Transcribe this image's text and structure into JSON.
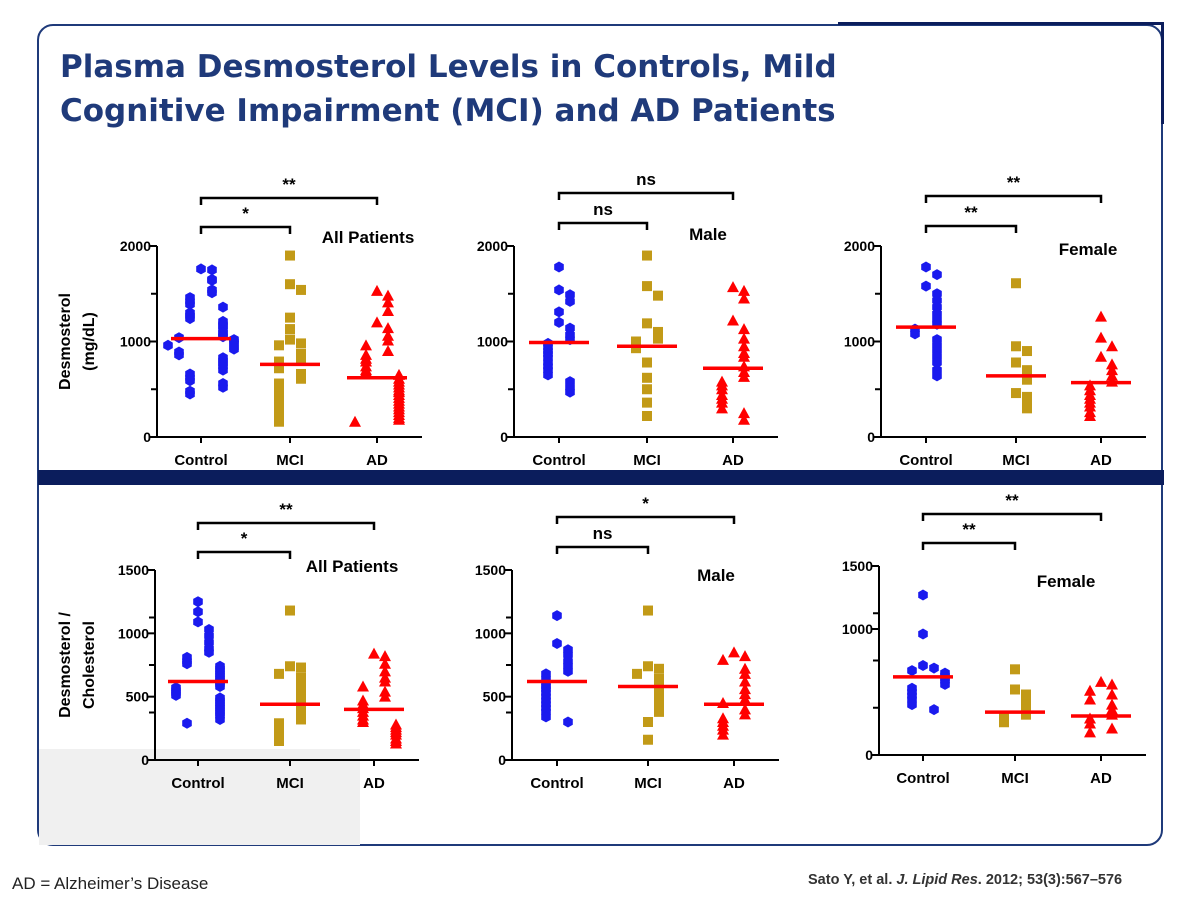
{
  "slide": {
    "title_line1": "Plasma Desmosterol Levels in Controls, Mild",
    "title_line2": "Cognitive Impairment (MCI) and AD Patients",
    "footnote": "AD = Alzheimer’s Disease",
    "citation_authors": "Sato Y, et al.",
    "citation_journal": "J. Lipid Res",
    "citation_details": ". 2012; 53(3):567–576"
  },
  "colors": {
    "title": "#1f3a7a",
    "frame": "#1f3a7a",
    "divider": "#0b1d5c",
    "control": "#1a1aee",
    "mci": "#c29a17",
    "ad": "#ff0000",
    "median": "#ff0000"
  },
  "chart_data": [
    {
      "type": "scatter",
      "title": "All Patients",
      "ylabel_lines": [
        "Desmosterol",
        "(mg/dL)"
      ],
      "categories": [
        "Control",
        "MCI",
        "AD"
      ],
      "ylim": [
        0,
        2000
      ],
      "yticks": [
        0,
        1000,
        2000
      ],
      "medians": [
        1030,
        760,
        620
      ],
      "series": [
        {
          "name": "Control",
          "marker": "hexagon",
          "values": [
            1760,
            1750,
            1650,
            1640,
            1540,
            1510,
            1460,
            1420,
            1390,
            1360,
            1300,
            1270,
            1240,
            1210,
            1180,
            1160,
            1120,
            1090,
            1060,
            1050,
            1040,
            1020,
            1000,
            980,
            960,
            940,
            920,
            890,
            860,
            830,
            800,
            770,
            740,
            700,
            660,
            620,
            590,
            560,
            520,
            480,
            450
          ]
        },
        {
          "name": "MCI",
          "marker": "square",
          "values": [
            1900,
            1600,
            1540,
            1250,
            1130,
            1020,
            980,
            960,
            870,
            820,
            790,
            720,
            660,
            610,
            560,
            510,
            470,
            420,
            370,
            330,
            290,
            230,
            200,
            160
          ]
        },
        {
          "name": "AD",
          "marker": "triangle",
          "values": [
            1530,
            1480,
            1410,
            1320,
            1200,
            1140,
            1060,
            1010,
            960,
            900,
            860,
            820,
            790,
            740,
            700,
            680,
            650,
            610,
            580,
            550,
            520,
            490,
            470,
            440,
            410,
            380,
            350,
            320,
            290,
            260,
            230,
            200,
            180,
            160
          ]
        }
      ],
      "comparisons": [
        {
          "from": 0,
          "to": 1,
          "label": "*"
        },
        {
          "from": 0,
          "to": 2,
          "label": "**"
        }
      ]
    },
    {
      "type": "scatter",
      "title": "Male",
      "ylabel_lines": [],
      "categories": [
        "Control",
        "MCI",
        "AD"
      ],
      "ylim": [
        0,
        2000
      ],
      "yticks": [
        0,
        1000,
        2000
      ],
      "medians": [
        990,
        950,
        720
      ],
      "series": [
        {
          "name": "Control",
          "marker": "hexagon",
          "values": [
            1780,
            1540,
            1490,
            1420,
            1310,
            1200,
            1140,
            1070,
            1020,
            980,
            940,
            900,
            870,
            830,
            780,
            740,
            700,
            650,
            580,
            520,
            470
          ]
        },
        {
          "name": "MCI",
          "marker": "square",
          "values": [
            1900,
            1580,
            1480,
            1190,
            1100,
            1030,
            1000,
            930,
            780,
            620,
            500,
            360,
            220
          ]
        },
        {
          "name": "AD",
          "marker": "triangle",
          "values": [
            1570,
            1530,
            1450,
            1220,
            1130,
            1030,
            950,
            880,
            840,
            740,
            680,
            630,
            580,
            540,
            500,
            440,
            400,
            360,
            300,
            250,
            180
          ]
        }
      ],
      "comparisons": [
        {
          "from": 0,
          "to": 1,
          "label": "ns"
        },
        {
          "from": 0,
          "to": 2,
          "label": "ns"
        }
      ]
    },
    {
      "type": "scatter",
      "title": "Female",
      "ylabel_lines": [],
      "categories": [
        "Control",
        "MCI",
        "AD"
      ],
      "ylim": [
        0,
        2000
      ],
      "yticks": [
        0,
        1000,
        2000
      ],
      "medians": [
        1150,
        640,
        570
      ],
      "series": [
        {
          "name": "Control",
          "marker": "hexagon",
          "values": [
            1780,
            1700,
            1580,
            1500,
            1430,
            1360,
            1290,
            1230,
            1180,
            1130,
            1080,
            1020,
            960,
            900,
            840,
            780,
            700,
            640
          ]
        },
        {
          "name": "MCI",
          "marker": "square",
          "values": [
            1610,
            950,
            900,
            780,
            700,
            600,
            460,
            420,
            340,
            300
          ]
        },
        {
          "name": "AD",
          "marker": "triangle",
          "values": [
            1260,
            1040,
            950,
            840,
            760,
            700,
            640,
            580,
            540,
            490,
            440,
            400,
            360,
            320,
            260,
            220
          ]
        }
      ],
      "comparisons": [
        {
          "from": 0,
          "to": 1,
          "label": "**"
        },
        {
          "from": 0,
          "to": 2,
          "label": "**"
        }
      ]
    },
    {
      "type": "scatter",
      "title": "All Patients",
      "ylabel_lines": [
        "Desmosterol /",
        "Cholesterol"
      ],
      "categories": [
        "Control",
        "MCI",
        "AD"
      ],
      "ylim": [
        0,
        1500
      ],
      "yticks": [
        0,
        500,
        1000,
        1500
      ],
      "medians": [
        620,
        440,
        400
      ],
      "series": [
        {
          "name": "Control",
          "marker": "hexagon",
          "values": [
            1250,
            1170,
            1090,
            1030,
            980,
            930,
            880,
            850,
            810,
            780,
            760,
            740,
            720,
            700,
            680,
            660,
            640,
            620,
            600,
            580,
            570,
            550,
            530,
            510,
            490,
            470,
            450,
            430,
            410,
            390,
            370,
            350,
            320,
            290
          ]
        },
        {
          "name": "MCI",
          "marker": "square",
          "values": [
            1180,
            740,
            730,
            680,
            650,
            600,
            560,
            520,
            480,
            440,
            400,
            360,
            320,
            290,
            260,
            230,
            200,
            180,
            150
          ]
        },
        {
          "name": "AD",
          "marker": "triangle",
          "values": [
            840,
            820,
            760,
            700,
            650,
            620,
            580,
            540,
            500,
            470,
            440,
            410,
            380,
            350,
            320,
            300,
            280,
            260,
            240,
            220,
            200,
            170,
            150,
            130
          ]
        }
      ],
      "comparisons": [
        {
          "from": 0,
          "to": 1,
          "label": "*"
        },
        {
          "from": 0,
          "to": 2,
          "label": "**"
        }
      ]
    },
    {
      "type": "scatter",
      "title": "Male",
      "ylabel_lines": [],
      "categories": [
        "Control",
        "MCI",
        "AD"
      ],
      "ylim": [
        0,
        1500
      ],
      "yticks": [
        0,
        500,
        1000,
        1500
      ],
      "medians": [
        620,
        580,
        440
      ],
      "series": [
        {
          "name": "Control",
          "marker": "hexagon",
          "values": [
            1140,
            920,
            870,
            830,
            780,
            740,
            700,
            680,
            640,
            610,
            580,
            560,
            530,
            500,
            470,
            440,
            410,
            380,
            340,
            300
          ]
        },
        {
          "name": "MCI",
          "marker": "square",
          "values": [
            1180,
            740,
            720,
            680,
            640,
            600,
            560,
            520,
            480,
            430,
            380,
            300,
            160
          ]
        },
        {
          "name": "AD",
          "marker": "triangle",
          "values": [
            850,
            820,
            790,
            720,
            680,
            620,
            560,
            520,
            480,
            450,
            400,
            360,
            330,
            300,
            270,
            240,
            200
          ]
        }
      ],
      "comparisons": [
        {
          "from": 0,
          "to": 1,
          "label": "ns"
        },
        {
          "from": 0,
          "to": 2,
          "label": "*"
        }
      ]
    },
    {
      "type": "scatter",
      "title": "Female",
      "ylabel_lines": [],
      "categories": [
        "Control",
        "MCI",
        "AD"
      ],
      "ylim": [
        0,
        1500
      ],
      "yticks": [
        0,
        1000,
        1500
      ],
      "medians": [
        620,
        340,
        310
      ],
      "series": [
        {
          "name": "Control",
          "marker": "hexagon",
          "values": [
            1270,
            960,
            710,
            690,
            670,
            650,
            630,
            610,
            590,
            560,
            530,
            500,
            470,
            440,
            400,
            360
          ]
        },
        {
          "name": "MCI",
          "marker": "square",
          "values": [
            680,
            520,
            480,
            440,
            400,
            360,
            320,
            290,
            260
          ]
        },
        {
          "name": "AD",
          "marker": "triangle",
          "values": [
            580,
            560,
            510,
            480,
            440,
            400,
            360,
            320,
            290,
            250,
            210,
            180
          ]
        }
      ],
      "comparisons": [
        {
          "from": 0,
          "to": 1,
          "label": "**"
        },
        {
          "from": 0,
          "to": 2,
          "label": "**"
        }
      ]
    }
  ]
}
